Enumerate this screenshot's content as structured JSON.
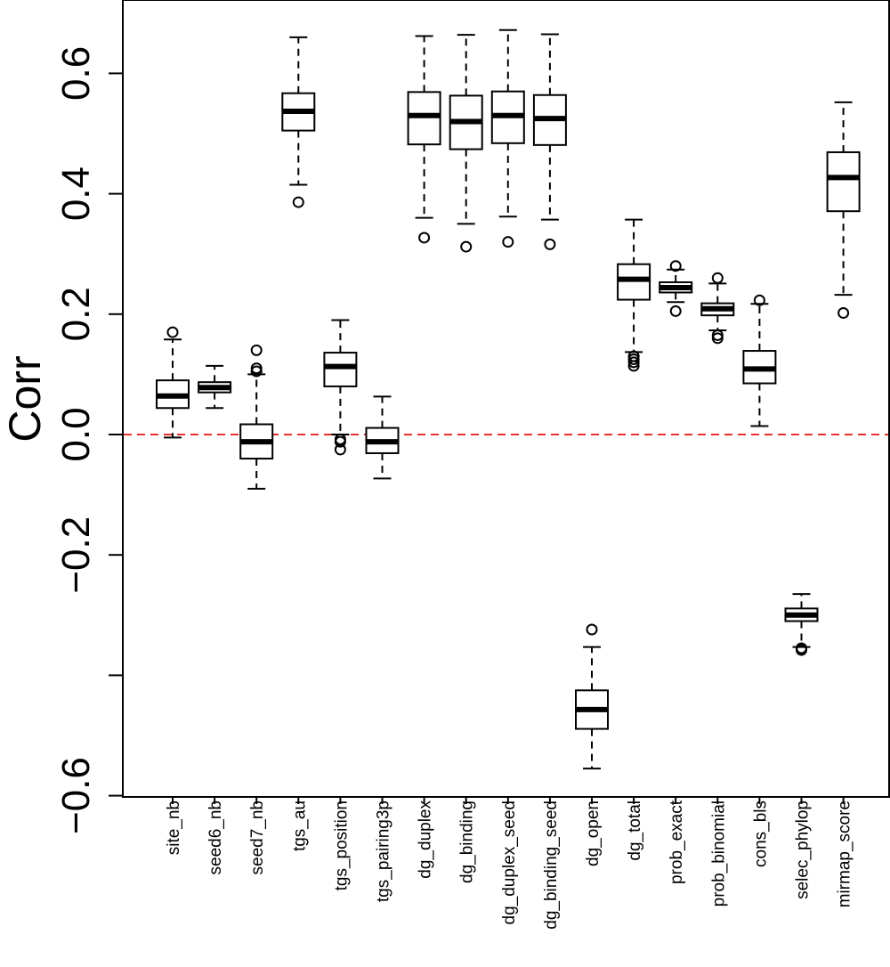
{
  "chart_data": {
    "type": "boxplot",
    "title": "",
    "xlabel": "",
    "ylabel": "Corr",
    "ylim": [
      -0.6,
      0.7
    ],
    "y_ticks": [
      -0.6,
      -0.4,
      -0.2,
      0.0,
      0.2,
      0.4,
      0.6
    ],
    "y_tick_labels": [
      "−0.6",
      "",
      "−0.2",
      "0.0",
      "0.2",
      "0.4",
      "0.6"
    ],
    "reference_line": {
      "y": 0.0,
      "color": "#e8312f",
      "style": "dashed"
    },
    "categories": [
      "site_nb",
      "seed6_nb",
      "seed7_nb",
      "tgs_au",
      "tgs_position",
      "tgs_pairing3p",
      "dg_duplex",
      "dg_binding",
      "dg_duplex_seed",
      "dg_binding_seed",
      "dg_open",
      "dg_total",
      "prob_exact",
      "prob_binomial",
      "cons_bls",
      "selec_phylop",
      "mirmap_score"
    ],
    "boxes": [
      {
        "name": "site_nb",
        "whisker_low": -0.005,
        "q1": 0.044,
        "median": 0.064,
        "q3": 0.09,
        "whisker_high": 0.158,
        "outliers": [
          0.17
        ]
      },
      {
        "name": "seed6_nb",
        "whisker_low": 0.044,
        "q1": 0.07,
        "median": 0.078,
        "q3": 0.087,
        "whisker_high": 0.114,
        "outliers": []
      },
      {
        "name": "seed7_nb",
        "whisker_low": -0.09,
        "q1": -0.04,
        "median": -0.012,
        "q3": 0.017,
        "whisker_high": 0.1,
        "outliers": [
          0.105,
          0.11,
          0.14
        ]
      },
      {
        "name": "tgs_au",
        "whisker_low": 0.415,
        "q1": 0.505,
        "median": 0.537,
        "q3": 0.567,
        "whisker_high": 0.66,
        "outliers": [
          0.386
        ]
      },
      {
        "name": "tgs_position",
        "whisker_low": 0.0,
        "q1": 0.08,
        "median": 0.113,
        "q3": 0.136,
        "whisker_high": 0.19,
        "outliers": [
          -0.008,
          -0.012,
          -0.025
        ]
      },
      {
        "name": "tgs_pairing3p",
        "whisker_low": -0.073,
        "q1": -0.031,
        "median": -0.012,
        "q3": 0.011,
        "whisker_high": 0.063,
        "outliers": []
      },
      {
        "name": "dg_duplex",
        "whisker_low": 0.36,
        "q1": 0.482,
        "median": 0.53,
        "q3": 0.569,
        "whisker_high": 0.662,
        "outliers": [
          0.327
        ]
      },
      {
        "name": "dg_binding",
        "whisker_low": 0.35,
        "q1": 0.474,
        "median": 0.52,
        "q3": 0.563,
        "whisker_high": 0.664,
        "outliers": [
          0.312
        ]
      },
      {
        "name": "dg_duplex_seed",
        "whisker_low": 0.362,
        "q1": 0.484,
        "median": 0.53,
        "q3": 0.57,
        "whisker_high": 0.672,
        "outliers": [
          0.32
        ]
      },
      {
        "name": "dg_binding_seed",
        "whisker_low": 0.357,
        "q1": 0.481,
        "median": 0.525,
        "q3": 0.564,
        "whisker_high": 0.665,
        "outliers": [
          0.316
        ]
      },
      {
        "name": "dg_open",
        "whisker_low": -0.555,
        "q1": -0.489,
        "median": -0.457,
        "q3": -0.425,
        "whisker_high": -0.353,
        "outliers": [
          -0.324
        ]
      },
      {
        "name": "dg_total",
        "whisker_low": 0.137,
        "q1": 0.224,
        "median": 0.258,
        "q3": 0.283,
        "whisker_high": 0.357,
        "outliers": [
          0.13,
          0.125,
          0.12,
          0.114
        ]
      },
      {
        "name": "prob_exact",
        "whisker_low": 0.22,
        "q1": 0.236,
        "median": 0.244,
        "q3": 0.253,
        "whisker_high": 0.274,
        "outliers": [
          0.28,
          0.205
        ]
      },
      {
        "name": "prob_binomial",
        "whisker_low": 0.173,
        "q1": 0.198,
        "median": 0.209,
        "q3": 0.218,
        "whisker_high": 0.251,
        "outliers": [
          0.26,
          0.165,
          0.16
        ]
      },
      {
        "name": "cons_bls",
        "whisker_low": 0.014,
        "q1": 0.085,
        "median": 0.109,
        "q3": 0.139,
        "whisker_high": 0.217,
        "outliers": [
          0.223
        ]
      },
      {
        "name": "selec_phylop",
        "whisker_low": -0.353,
        "q1": -0.31,
        "median": -0.3,
        "q3": -0.289,
        "whisker_high": -0.265,
        "outliers": [
          -0.355,
          -0.358
        ]
      },
      {
        "name": "mirmap_score",
        "whisker_low": 0.232,
        "q1": 0.371,
        "median": 0.427,
        "q3": 0.469,
        "whisker_high": 0.552,
        "outliers": [
          0.202
        ]
      }
    ]
  }
}
